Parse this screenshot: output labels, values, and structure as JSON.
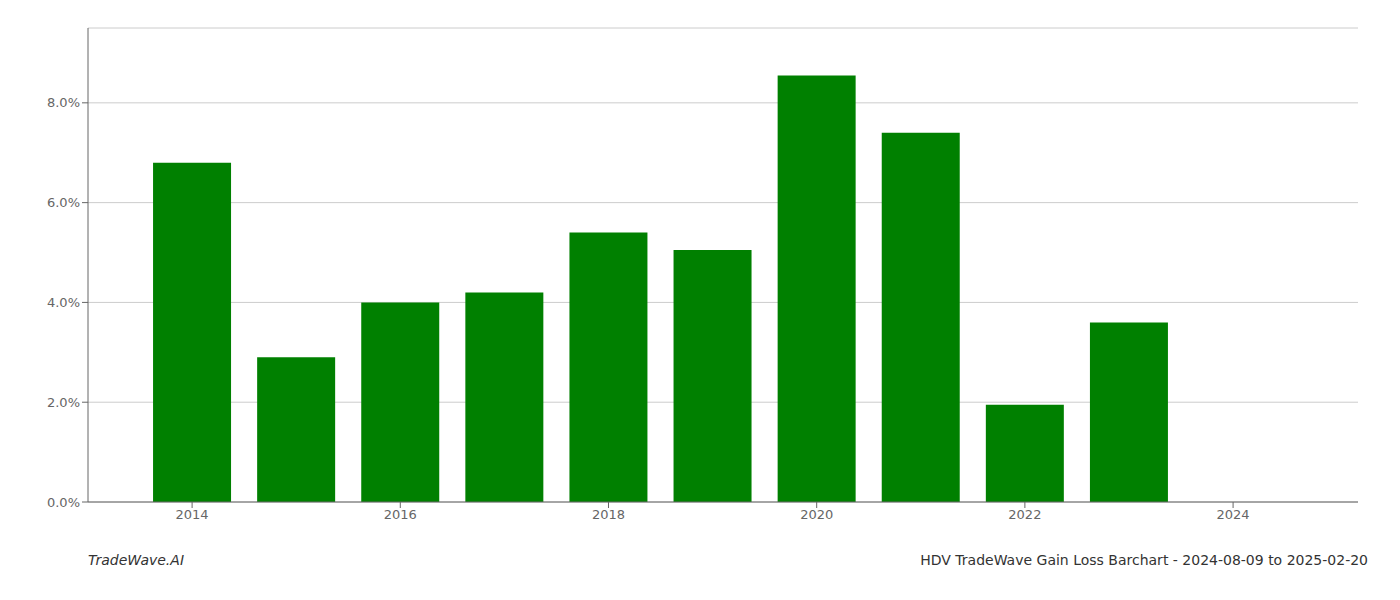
{
  "chart_data": {
    "type": "bar",
    "annotations": [
      "TradeWave.AI",
      "HDV TradeWave Gain Loss Barchart - 2024-08-09 to 2025-02-20"
    ],
    "x": [
      2014,
      2015,
      2016,
      2017,
      2018,
      2019,
      2020,
      2021,
      2022,
      2023
    ],
    "values": [
      0.068,
      0.029,
      0.04,
      0.042,
      0.054,
      0.0505,
      0.0855,
      0.074,
      0.0195,
      0.036
    ],
    "color": "#008000",
    "xlim": [
      2013.0,
      2025.2
    ],
    "xticks": [
      2014,
      2016,
      2018,
      2020,
      2022,
      2024
    ],
    "ylim": [
      0,
      0.095
    ],
    "yticks": [
      {
        "value": 0.0,
        "label": "0.0%"
      },
      {
        "value": 0.02,
        "label": "2.0%"
      },
      {
        "value": 0.04,
        "label": "4.0%"
      },
      {
        "value": 0.06,
        "label": "6.0%"
      },
      {
        "value": 0.08,
        "label": "8.0%"
      }
    ],
    "grid": true
  }
}
